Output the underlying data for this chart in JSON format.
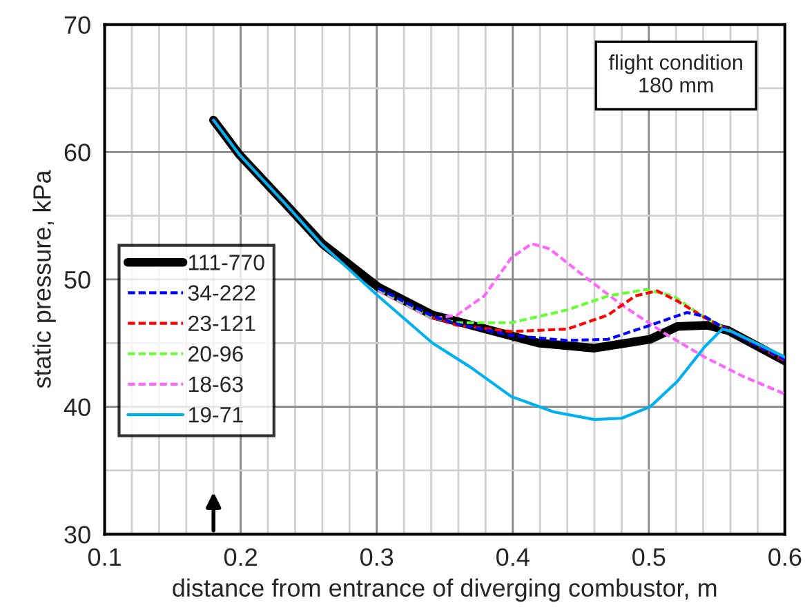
{
  "chart_data": {
    "type": "line",
    "xlabel": "distance from entrance of diverging combustor, m",
    "ylabel": "static pressure, kPa",
    "xlim": [
      0.1,
      0.6
    ],
    "xticks": [
      0.1,
      0.2,
      0.3,
      0.4,
      0.5,
      0.6
    ],
    "ylim": [
      30,
      70
    ],
    "yticks": [
      30,
      40,
      50,
      60,
      70
    ],
    "grid": true,
    "legend": "left",
    "annotations": [
      "flight condition\n180 mm"
    ],
    "series": [
      {
        "name": "111-770",
        "color": "#000000",
        "line_style": "solid",
        "x": [
          0.18,
          0.199,
          0.234,
          0.26,
          0.301,
          0.341,
          0.359,
          0.419,
          0.46,
          0.501,
          0.521,
          0.543,
          0.558,
          0.6
        ],
        "values": [
          62.5,
          59.8,
          55.8,
          52.8,
          49.4,
          47.2,
          46.7,
          45.0,
          44.6,
          45.3,
          46.3,
          46.4,
          46.0,
          43.6
        ]
      },
      {
        "name": "34-222",
        "color": "#0000ff",
        "line_style": "dashed",
        "x": [
          0.301,
          0.341,
          0.359,
          0.399,
          0.44,
          0.47,
          0.501,
          0.528,
          0.541,
          0.558,
          0.6
        ],
        "values": [
          49.3,
          47.1,
          46.5,
          45.6,
          45.2,
          45.3,
          46.4,
          47.4,
          47.1,
          46.0,
          43.7
        ]
      },
      {
        "name": "23-121",
        "color": "#ff0000",
        "line_style": "dashed",
        "x": [
          0.341,
          0.359,
          0.399,
          0.44,
          0.47,
          0.49,
          0.506,
          0.521,
          0.541,
          0.561,
          0.6
        ],
        "values": [
          47.0,
          46.4,
          45.9,
          46.1,
          47.2,
          48.7,
          49.1,
          48.3,
          47.0,
          45.9,
          43.6
        ]
      },
      {
        "name": "20-96",
        "color": "#66ff33",
        "line_style": "dashed",
        "x": [
          0.301,
          0.341,
          0.359,
          0.399,
          0.44,
          0.47,
          0.498,
          0.518,
          0.541,
          0.561,
          0.6
        ],
        "values": [
          49.2,
          47.0,
          46.6,
          46.6,
          47.6,
          48.7,
          49.2,
          48.7,
          47.0,
          45.9,
          43.9
        ]
      },
      {
        "name": "18-63",
        "color": "#ff66ff",
        "line_style": "dashed",
        "x": [
          0.301,
          0.341,
          0.359,
          0.379,
          0.399,
          0.414,
          0.427,
          0.453,
          0.48,
          0.511,
          0.541,
          0.569,
          0.6
        ],
        "values": [
          49.1,
          46.9,
          47.2,
          48.7,
          51.7,
          52.8,
          52.4,
          50.2,
          48.0,
          45.8,
          43.9,
          42.4,
          41.0
        ]
      },
      {
        "name": "19-71",
        "color": "#00b0f0",
        "line_style": "solid",
        "x": [
          0.18,
          0.199,
          0.234,
          0.26,
          0.301,
          0.341,
          0.369,
          0.399,
          0.43,
          0.46,
          0.48,
          0.501,
          0.521,
          0.541,
          0.554,
          0.561,
          0.6
        ],
        "values": [
          62.5,
          59.8,
          55.8,
          52.7,
          48.7,
          45.0,
          43.1,
          40.8,
          39.6,
          39.0,
          39.1,
          40.0,
          42.0,
          44.7,
          46.1,
          45.9,
          43.9
        ]
      }
    ]
  }
}
